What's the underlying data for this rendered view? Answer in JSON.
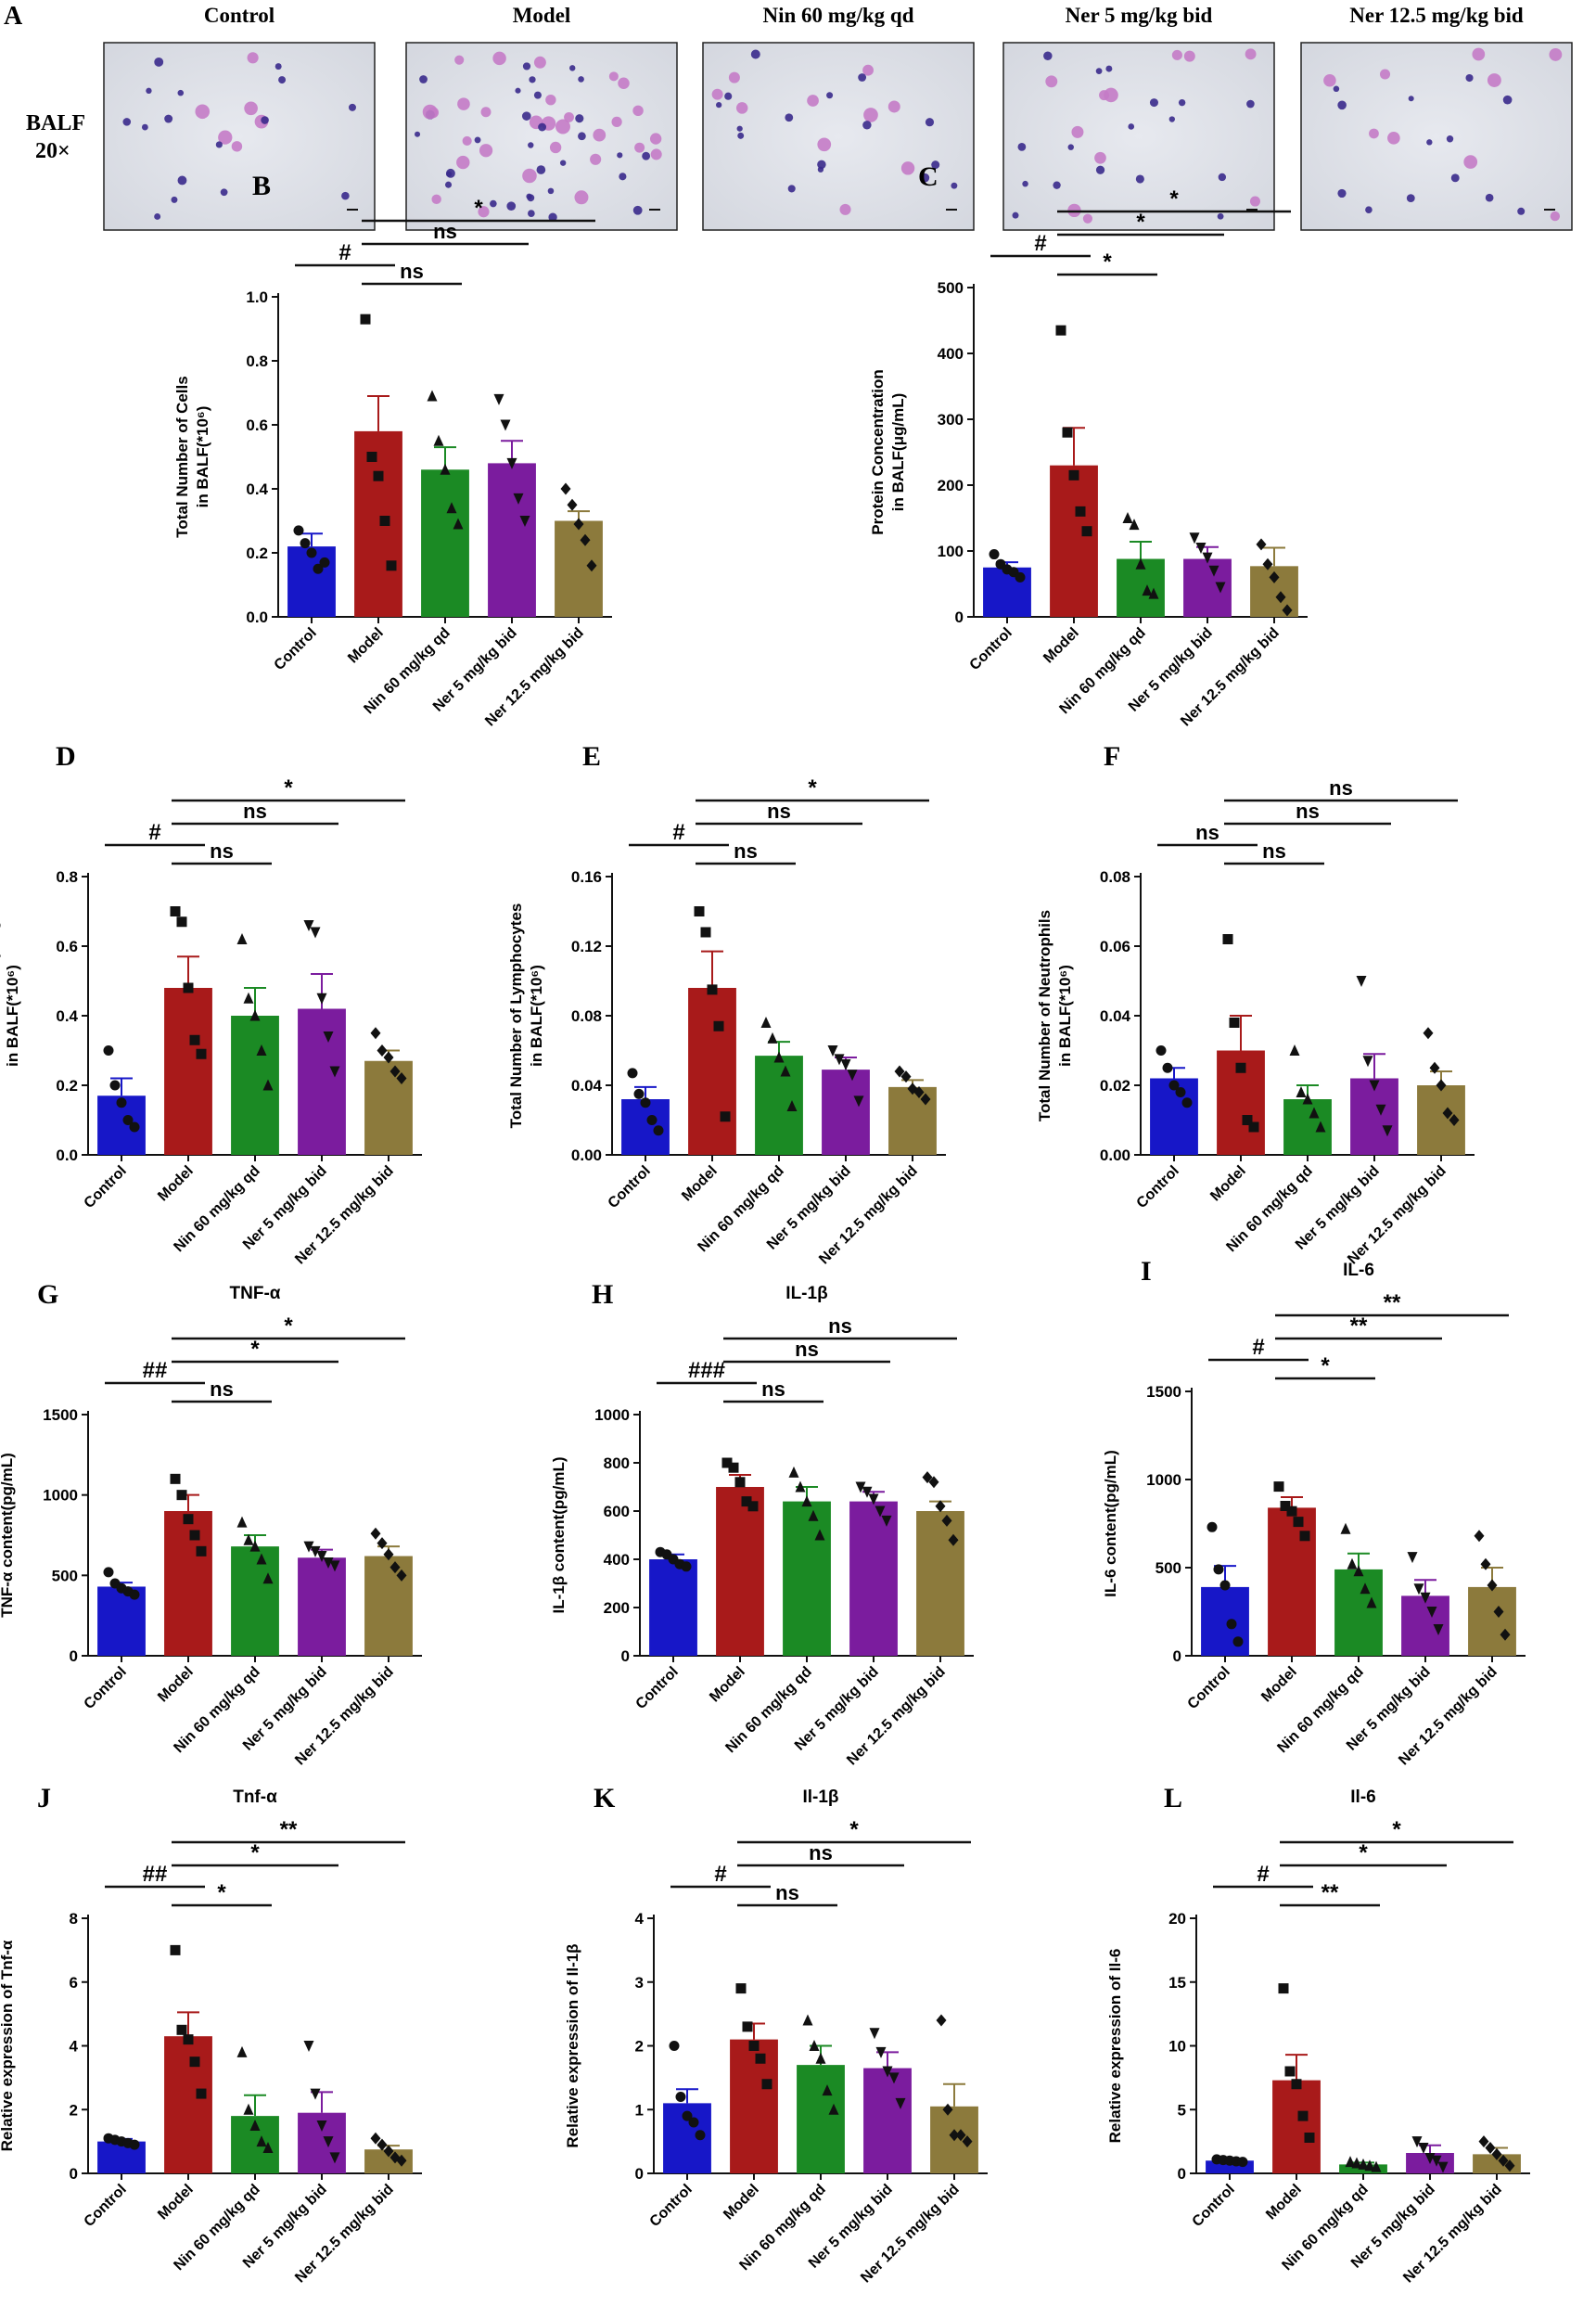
{
  "groups": [
    "Control",
    "Model",
    "Nin 60 mg/kg qd",
    "Ner 5 mg/kg bid",
    "Ner 12.5 mg/kg bid"
  ],
  "group_colors": [
    "#1717c8",
    "#a81a1a",
    "#1b8a24",
    "#7b1c9e",
    "#8c7a3c"
  ],
  "micro": {
    "label": "A",
    "row_label_1": "BALF",
    "row_label_2": "20×",
    "headers": [
      "Control",
      "Model",
      "Nin 60 mg/kg qd",
      "Ner 5 mg/kg bid",
      "Ner 12.5 mg/kg bid"
    ]
  },
  "chart_data": [
    {
      "label": "B",
      "type": "bar",
      "title": "",
      "ylabel_1": "Total Number of Cells",
      "ylabel_2": "in BALF(*10⁶)",
      "ylim": [
        0,
        1.0
      ],
      "ticks": [
        "0.0",
        "0.2",
        "0.4",
        "0.6",
        "0.8",
        "1.0"
      ],
      "tick_values": [
        0,
        0.2,
        0.4,
        0.6,
        0.8,
        1.0
      ],
      "categories": [
        "Control",
        "Model",
        "Nin 60 mg/kg qd",
        "Ner 5 mg/kg bid",
        "Ner 12.5 mg/kg bid"
      ],
      "values": [
        0.22,
        0.58,
        0.46,
        0.48,
        0.3
      ],
      "errors": [
        0.04,
        0.11,
        0.07,
        0.07,
        0.03
      ],
      "points": [
        [
          0.27,
          0.23,
          0.2,
          0.15,
          0.17
        ],
        [
          0.93,
          0.5,
          0.44,
          0.3,
          0.16
        ],
        [
          0.69,
          0.55,
          0.46,
          0.34,
          0.29
        ],
        [
          0.68,
          0.6,
          0.48,
          0.37,
          0.3
        ],
        [
          0.4,
          0.35,
          0.29,
          0.24,
          0.16
        ]
      ],
      "comparisons": [
        {
          "from": 1,
          "to": 4,
          "text": "*"
        },
        {
          "from": 1,
          "to": 3,
          "text": "ns"
        },
        {
          "from": 0,
          "to": 1,
          "text": "#"
        },
        {
          "from": 1,
          "to": 2,
          "text": "ns"
        }
      ]
    },
    {
      "label": "C",
      "type": "bar",
      "title": "",
      "ylabel_1": "Protein Concentration",
      "ylabel_2": "in BALF(μg/mL)",
      "ylim": [
        0,
        500
      ],
      "ticks": [
        "0",
        "100",
        "200",
        "300",
        "400",
        "500"
      ],
      "tick_values": [
        0,
        100,
        200,
        300,
        400,
        500
      ],
      "categories": [
        "Control",
        "Model",
        "Nin 60 mg/kg qd",
        "Ner 5 mg/kg bid",
        "Ner 12.5 mg/kg bid"
      ],
      "values": [
        75,
        230,
        88,
        88,
        77
      ],
      "errors": [
        8,
        57,
        26,
        18,
        28
      ],
      "points": [
        [
          95,
          80,
          72,
          68,
          60
        ],
        [
          435,
          280,
          215,
          160,
          130
        ],
        [
          150,
          140,
          80,
          40,
          35
        ],
        [
          120,
          105,
          90,
          70,
          45
        ],
        [
          110,
          80,
          60,
          30,
          10
        ]
      ],
      "comparisons": [
        {
          "from": 1,
          "to": 4,
          "text": "*"
        },
        {
          "from": 1,
          "to": 3,
          "text": "*"
        },
        {
          "from": 0,
          "to": 1,
          "text": "#"
        },
        {
          "from": 1,
          "to": 2,
          "text": "*"
        }
      ]
    },
    {
      "label": "D",
      "type": "bar",
      "title": "",
      "ylabel_1": "Total Number of Macrophages",
      "ylabel_2": "in BALF(*10⁶)",
      "ylim": [
        0,
        0.8
      ],
      "ticks": [
        "0.0",
        "0.2",
        "0.4",
        "0.6",
        "0.8"
      ],
      "tick_values": [
        0,
        0.2,
        0.4,
        0.6,
        0.8
      ],
      "categories": [
        "Control",
        "Model",
        "Nin 60 mg/kg qd",
        "Ner 5 mg/kg bid",
        "Ner 12.5 mg/kg bid"
      ],
      "values": [
        0.17,
        0.48,
        0.4,
        0.42,
        0.27
      ],
      "errors": [
        0.05,
        0.09,
        0.08,
        0.1,
        0.03
      ],
      "points": [
        [
          0.3,
          0.2,
          0.15,
          0.1,
          0.08
        ],
        [
          0.7,
          0.67,
          0.48,
          0.33,
          0.29
        ],
        [
          0.62,
          0.45,
          0.4,
          0.3,
          0.2
        ],
        [
          0.66,
          0.64,
          0.45,
          0.34,
          0.24
        ],
        [
          0.35,
          0.3,
          0.28,
          0.24,
          0.22
        ]
      ],
      "comparisons": [
        {
          "from": 1,
          "to": 4,
          "text": "*"
        },
        {
          "from": 1,
          "to": 3,
          "text": "ns"
        },
        {
          "from": 0,
          "to": 1,
          "text": "#"
        },
        {
          "from": 1,
          "to": 2,
          "text": "ns"
        }
      ]
    },
    {
      "label": "E",
      "type": "bar",
      "title": "",
      "ylabel_1": "Total Number of Lymphocytes",
      "ylabel_2": "in BALF(*10⁶)",
      "ylim": [
        0,
        0.16
      ],
      "ticks": [
        "0.00",
        "0.04",
        "0.08",
        "0.12",
        "0.16"
      ],
      "tick_values": [
        0,
        0.04,
        0.08,
        0.12,
        0.16
      ],
      "categories": [
        "Control",
        "Model",
        "Nin 60 mg/kg qd",
        "Ner 5 mg/kg bid",
        "Ner 12.5 mg/kg bid"
      ],
      "values": [
        0.032,
        0.096,
        0.057,
        0.049,
        0.039
      ],
      "errors": [
        0.007,
        0.021,
        0.008,
        0.007,
        0.004
      ],
      "points": [
        [
          0.047,
          0.035,
          0.03,
          0.02,
          0.014
        ],
        [
          0.14,
          0.128,
          0.095,
          0.074,
          0.022
        ],
        [
          0.076,
          0.067,
          0.056,
          0.048,
          0.028
        ],
        [
          0.06,
          0.055,
          0.052,
          0.046,
          0.031
        ],
        [
          0.048,
          0.045,
          0.038,
          0.036,
          0.032
        ]
      ],
      "comparisons": [
        {
          "from": 1,
          "to": 4,
          "text": "*"
        },
        {
          "from": 1,
          "to": 3,
          "text": "ns"
        },
        {
          "from": 0,
          "to": 1,
          "text": "#"
        },
        {
          "from": 1,
          "to": 2,
          "text": "ns"
        }
      ]
    },
    {
      "label": "F",
      "type": "bar",
      "title": "",
      "ylabel_1": "Total Number of Neutrophils",
      "ylabel_2": "in BALF(*10⁶)",
      "ylim": [
        0,
        0.08
      ],
      "ticks": [
        "0.00",
        "0.02",
        "0.04",
        "0.06",
        "0.08"
      ],
      "tick_values": [
        0,
        0.02,
        0.04,
        0.06,
        0.08
      ],
      "categories": [
        "Control",
        "Model",
        "Nin 60 mg/kg qd",
        "Ner 5 mg/kg bid",
        "Ner 12.5 mg/kg bid"
      ],
      "values": [
        0.022,
        0.03,
        0.016,
        0.022,
        0.02
      ],
      "errors": [
        0.003,
        0.01,
        0.004,
        0.007,
        0.004
      ],
      "points": [
        [
          0.03,
          0.025,
          0.02,
          0.018,
          0.015
        ],
        [
          0.062,
          0.038,
          0.025,
          0.01,
          0.008
        ],
        [
          0.03,
          0.018,
          0.016,
          0.012,
          0.008
        ],
        [
          0.05,
          0.027,
          0.02,
          0.013,
          0.007
        ],
        [
          0.035,
          0.025,
          0.02,
          0.012,
          0.01
        ]
      ],
      "comparisons": [
        {
          "from": 1,
          "to": 4,
          "text": "ns"
        },
        {
          "from": 1,
          "to": 3,
          "text": "ns"
        },
        {
          "from": 0,
          "to": 1,
          "text": "ns"
        },
        {
          "from": 1,
          "to": 2,
          "text": "ns"
        }
      ]
    },
    {
      "label": "G",
      "type": "bar",
      "title": "TNF-α",
      "ylabel_1": "TNF-α content(pg/mL)",
      "ylabel_2": "",
      "ylim": [
        0,
        1500
      ],
      "ticks": [
        "0",
        "500",
        "1000",
        "1500"
      ],
      "tick_values": [
        0,
        500,
        1000,
        1500
      ],
      "categories": [
        "Control",
        "Model",
        "Nin 60 mg/kg qd",
        "Ner 5 mg/kg bid",
        "Ner 12.5 mg/kg bid"
      ],
      "values": [
        430,
        900,
        680,
        610,
        620
      ],
      "errors": [
        25,
        100,
        70,
        50,
        60
      ],
      "points": [
        [
          520,
          450,
          420,
          400,
          380
        ],
        [
          1100,
          1000,
          850,
          750,
          650
        ],
        [
          830,
          720,
          680,
          600,
          480
        ],
        [
          680,
          650,
          620,
          580,
          560
        ],
        [
          760,
          700,
          630,
          550,
          500
        ]
      ],
      "comparisons": [
        {
          "from": 1,
          "to": 4,
          "text": "*"
        },
        {
          "from": 1,
          "to": 3,
          "text": "*"
        },
        {
          "from": 0,
          "to": 1,
          "text": "##"
        },
        {
          "from": 1,
          "to": 2,
          "text": "ns"
        }
      ]
    },
    {
      "label": "H",
      "type": "bar",
      "title": "IL-1β",
      "ylabel_1": "IL-1β content(pg/mL)",
      "ylabel_2": "",
      "ylim": [
        0,
        1000
      ],
      "ticks": [
        "0",
        "200",
        "400",
        "600",
        "800",
        "1000"
      ],
      "tick_values": [
        0,
        200,
        400,
        600,
        800,
        1000
      ],
      "categories": [
        "Control",
        "Model",
        "Nin 60 mg/kg qd",
        "Ner 5 mg/kg bid",
        "Ner 12.5 mg/kg bid"
      ],
      "values": [
        400,
        700,
        640,
        640,
        600
      ],
      "errors": [
        20,
        50,
        60,
        40,
        40
      ],
      "points": [
        [
          430,
          420,
          400,
          380,
          370
        ],
        [
          800,
          780,
          720,
          640,
          620
        ],
        [
          760,
          700,
          640,
          580,
          500
        ],
        [
          700,
          680,
          650,
          600,
          560
        ],
        [
          740,
          720,
          620,
          560,
          480
        ]
      ],
      "comparisons": [
        {
          "from": 1,
          "to": 4,
          "text": "ns"
        },
        {
          "from": 1,
          "to": 3,
          "text": "ns"
        },
        {
          "from": 0,
          "to": 1,
          "text": "###"
        },
        {
          "from": 1,
          "to": 2,
          "text": "ns"
        }
      ]
    },
    {
      "label": "I",
      "type": "bar",
      "title": "IL-6",
      "ylabel_1": "IL-6 content(pg/mL)",
      "ylabel_2": "",
      "ylim": [
        0,
        1500
      ],
      "ticks": [
        "0",
        "500",
        "1000",
        "1500"
      ],
      "tick_values": [
        0,
        500,
        1000,
        1500
      ],
      "categories": [
        "Control",
        "Model",
        "Nin 60 mg/kg qd",
        "Ner 5 mg/kg bid",
        "Ner 12.5 mg/kg bid"
      ],
      "values": [
        390,
        840,
        490,
        340,
        390
      ],
      "errors": [
        120,
        60,
        90,
        90,
        110
      ],
      "points": [
        [
          730,
          490,
          400,
          180,
          80
        ],
        [
          960,
          850,
          820,
          760,
          680
        ],
        [
          720,
          520,
          480,
          380,
          300
        ],
        [
          560,
          380,
          330,
          250,
          150
        ],
        [
          680,
          520,
          400,
          250,
          120
        ]
      ],
      "comparisons": [
        {
          "from": 1,
          "to": 4,
          "text": "**"
        },
        {
          "from": 1,
          "to": 3,
          "text": "**"
        },
        {
          "from": 0,
          "to": 1,
          "text": "#"
        },
        {
          "from": 1,
          "to": 2,
          "text": "*"
        }
      ]
    },
    {
      "label": "J",
      "type": "bar",
      "title": "Tnf-α",
      "ylabel_1": "Relative expression of Tnf-α",
      "ylabel_2": "",
      "ylim": [
        0,
        8
      ],
      "ticks": [
        "0",
        "2",
        "4",
        "6",
        "8"
      ],
      "tick_values": [
        0,
        2,
        4,
        6,
        8
      ],
      "categories": [
        "Control",
        "Model",
        "Nin 60 mg/kg qd",
        "Ner 5 mg/kg bid",
        "Ner 12.5 mg/kg bid"
      ],
      "values": [
        1.0,
        4.3,
        1.8,
        1.9,
        0.75
      ],
      "errors": [
        0.08,
        0.75,
        0.65,
        0.65,
        0.12
      ],
      "points": [
        [
          1.1,
          1.05,
          1.0,
          0.95,
          0.9
        ],
        [
          7.0,
          4.5,
          4.2,
          3.5,
          2.5
        ],
        [
          3.8,
          2.0,
          1.5,
          1.0,
          0.8
        ],
        [
          4.0,
          2.5,
          1.5,
          1.0,
          0.5
        ],
        [
          1.1,
          0.9,
          0.7,
          0.5,
          0.4
        ]
      ],
      "comparisons": [
        {
          "from": 1,
          "to": 4,
          "text": "**"
        },
        {
          "from": 1,
          "to": 3,
          "text": "*"
        },
        {
          "from": 0,
          "to": 1,
          "text": "##"
        },
        {
          "from": 1,
          "to": 2,
          "text": "*"
        }
      ]
    },
    {
      "label": "K",
      "type": "bar",
      "title": "Il-1β",
      "ylabel_1": "Relative expression of Il-1β",
      "ylabel_2": "",
      "ylim": [
        0,
        4
      ],
      "ticks": [
        "0",
        "1",
        "2",
        "3",
        "4"
      ],
      "tick_values": [
        0,
        1,
        2,
        3,
        4
      ],
      "categories": [
        "Control",
        "Model",
        "Nin 60 mg/kg qd",
        "Ner 5 mg/kg bid",
        "Ner 12.5 mg/kg bid"
      ],
      "values": [
        1.1,
        2.1,
        1.7,
        1.65,
        1.05
      ],
      "errors": [
        0.22,
        0.25,
        0.3,
        0.25,
        0.35
      ],
      "points": [
        [
          2.0,
          1.2,
          0.9,
          0.8,
          0.6
        ],
        [
          2.9,
          2.3,
          2.0,
          1.8,
          1.4
        ],
        [
          2.4,
          2.0,
          1.8,
          1.3,
          1.0
        ],
        [
          2.2,
          1.9,
          1.6,
          1.5,
          1.1
        ],
        [
          2.4,
          1.0,
          0.6,
          0.6,
          0.5
        ]
      ],
      "comparisons": [
        {
          "from": 1,
          "to": 4,
          "text": "*"
        },
        {
          "from": 1,
          "to": 3,
          "text": "ns"
        },
        {
          "from": 0,
          "to": 1,
          "text": "#"
        },
        {
          "from": 1,
          "to": 2,
          "text": "ns"
        }
      ]
    },
    {
      "label": "L",
      "type": "bar",
      "title": "Il-6",
      "ylabel_1": "Relative expression of Il-6",
      "ylabel_2": "",
      "ylim": [
        0,
        20
      ],
      "ticks": [
        "0",
        "5",
        "10",
        "15",
        "20"
      ],
      "tick_values": [
        0,
        5,
        10,
        15,
        20
      ],
      "categories": [
        "Control",
        "Model",
        "Nin 60 mg/kg qd",
        "Ner 5 mg/kg bid",
        "Ner 12.5 mg/kg bid"
      ],
      "values": [
        1.0,
        7.3,
        0.7,
        1.6,
        1.5
      ],
      "errors": [
        0.1,
        2.0,
        0.15,
        0.6,
        0.5
      ],
      "points": [
        [
          1.1,
          1.05,
          1.0,
          0.95,
          0.9
        ],
        [
          14.5,
          8.0,
          7.0,
          4.5,
          2.8
        ],
        [
          0.9,
          0.8,
          0.7,
          0.6,
          0.5
        ],
        [
          2.5,
          2.0,
          1.2,
          1.0,
          0.5
        ],
        [
          2.5,
          2.0,
          1.5,
          1.0,
          0.6
        ]
      ],
      "comparisons": [
        {
          "from": 1,
          "to": 4,
          "text": "*"
        },
        {
          "from": 1,
          "to": 3,
          "text": "*"
        },
        {
          "from": 0,
          "to": 1,
          "text": "#"
        },
        {
          "from": 1,
          "to": 2,
          "text": "**"
        }
      ]
    }
  ]
}
